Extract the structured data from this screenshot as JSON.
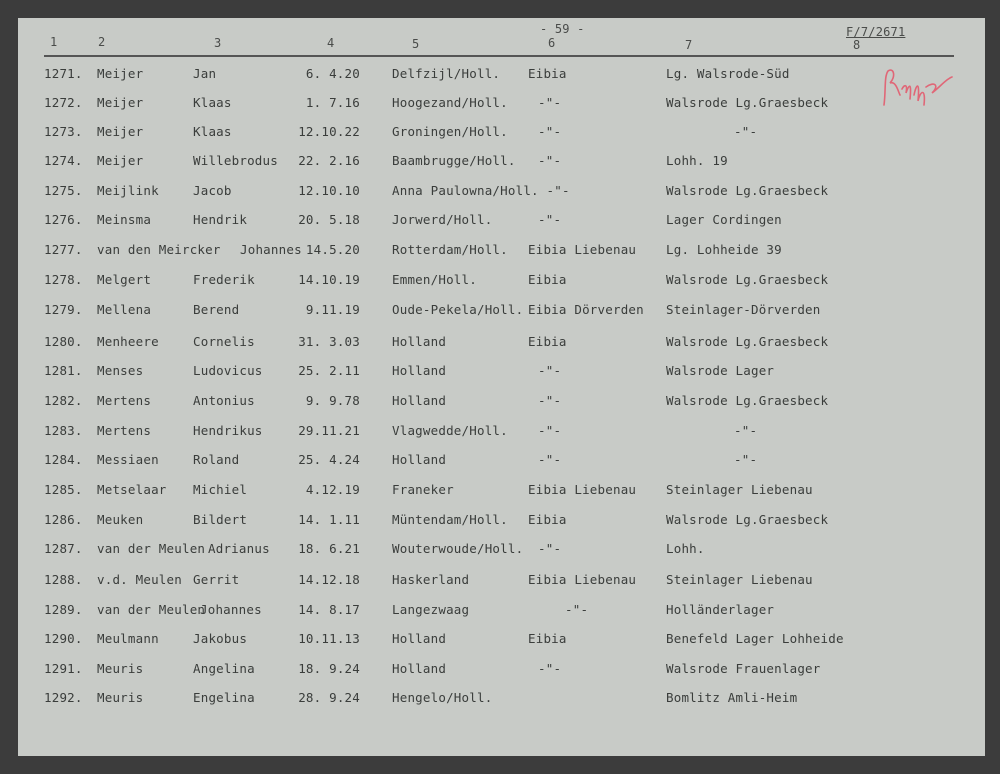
{
  "page_number": "- 59 -",
  "reference": "F/7/2671",
  "column_headers": [
    "1",
    "2",
    "3",
    "4",
    "5",
    "6",
    "7",
    "8"
  ],
  "signature_color": "#e06777",
  "rows": [
    {
      "no": "1271.",
      "surname": "Meijer",
      "first": "Jan",
      "date": "6. 4.20",
      "place": "Delfzijl/Holl.",
      "c6": "Eibia",
      "c7": "Lg. Walsrode-Süd"
    },
    {
      "no": "1272.",
      "surname": "Meijer",
      "first": "Klaas",
      "date": "1. 7.16",
      "place": "Hoogezand/Holl.",
      "c6": "-\"-",
      "c7": "Walsrode Lg.Graesbeck"
    },
    {
      "no": "1273.",
      "surname": "Meijer",
      "first": "Klaas",
      "date": "12.10.22",
      "place": "Groningen/Holl.",
      "c6": "-\"-",
      "c7": "-\"-"
    },
    {
      "no": "1274.",
      "surname": "Meijer",
      "first": "Willebrodus",
      "date": "22. 2.16",
      "place": "Baambrugge/Holl.",
      "c6": "-\"-",
      "c7": "Lohh. 19"
    },
    {
      "no": "1275.",
      "surname": "Meijlink",
      "first": "Jacob",
      "date": "12.10.10",
      "place": "Anna Paulowna/Holl. -\"-",
      "c6": "",
      "c7": "Walsrode Lg.Graesbeck"
    },
    {
      "no": "1276.",
      "surname": "Meinsma",
      "first": "Hendrik",
      "date": "20. 5.18",
      "place": "Jorwerd/Holl.",
      "c6": "-\"-",
      "c7": "Lager Cordingen"
    },
    {
      "no": "1277.",
      "surname": "van den Meircker",
      "first": "Johannes",
      "date": "14.5.20",
      "place": "Rotterdam/Holl.",
      "c6": "Eibia Liebenau",
      "c7": "Lg. Lohheide 39"
    },
    {
      "no": "1278.",
      "surname": "Melgert",
      "first": "Frederik",
      "date": "14.10.19",
      "place": "Emmen/Holl.",
      "c6": "Eibia",
      "c7": "Walsrode Lg.Graesbeck"
    },
    {
      "no": "1279.",
      "surname": "Mellena",
      "first": "Berend",
      "date": "9.11.19",
      "place": "Oude-Pekela/Holl.",
      "c6": "Eibia Dörverden",
      "c7": "Steinlager-Dörverden"
    },
    {
      "no": "1280.",
      "surname": "Menheere",
      "first": "Cornelis",
      "date": "31. 3.03",
      "place": "Holland",
      "c6": "Eibia",
      "c7": "Walsrode Lg.Graesbeck"
    },
    {
      "no": "1281.",
      "surname": "Menses",
      "first": "Ludovicus",
      "date": "25. 2.11",
      "place": "Holland",
      "c6": "-\"-",
      "c7": "Walsrode Lager"
    },
    {
      "no": "1282.",
      "surname": "Mertens",
      "first": "Antonius",
      "date": "9. 9.78",
      "place": "Holland",
      "c6": "-\"-",
      "c7": "Walsrode Lg.Graesbeck"
    },
    {
      "no": "1283.",
      "surname": "Mertens",
      "first": "Hendrikus",
      "date": "29.11.21",
      "place": "Vlagwedde/Holl.",
      "c6": "-\"-",
      "c7": "-\"-"
    },
    {
      "no": "1284.",
      "surname": "Messiaen",
      "first": "Roland",
      "date": "25. 4.24",
      "place": "Holland",
      "c6": "-\"-",
      "c7": "-\"-"
    },
    {
      "no": "1285.",
      "surname": "Metselaar",
      "first": "Michiel",
      "date": "4.12.19",
      "place": "Franeker",
      "c6": "Eibia Liebenau",
      "c7": "Steinlager Liebenau"
    },
    {
      "no": "1286.",
      "surname": "Meuken",
      "first": "Bildert",
      "date": "14. 1.11",
      "place": "Müntendam/Holl.",
      "c6": "Eibia",
      "c7": "Walsrode Lg.Graesbeck"
    },
    {
      "no": "1287.",
      "surname": "van der Meulen",
      "first": "Adrianus",
      "date": "18. 6.21",
      "place": "Wouterwoude/Holl.",
      "c6": "-\"-",
      "c7": "Lohh."
    },
    {
      "no": "1288.",
      "surname": "v.d. Meulen",
      "first": "Gerrit",
      "date": "14.12.18",
      "place": "Haskerland",
      "c6": "Eibia Liebenau",
      "c7": "Steinlager Liebenau"
    },
    {
      "no": "1289.",
      "surname": "van der Meulen",
      "first": "Johannes",
      "date": "14. 8.17",
      "place": "Langezwaag",
      "c6": "-\"-",
      "c7": "Holländerlager"
    },
    {
      "no": "1290.",
      "surname": "Meulmann",
      "first": "Jakobus",
      "date": "10.11.13",
      "place": "Holland",
      "c6": "Eibia",
      "c7": "Benefeld Lager Lohheide"
    },
    {
      "no": "1291.",
      "surname": "Meuris",
      "first": "Angelina",
      "date": "18. 9.24",
      "place": "Holland",
      "c6": "-\"-",
      "c7": "Walsrode Frauenlager"
    },
    {
      "no": "1292.",
      "surname": "Meuris",
      "first": "Engelina",
      "date": "28. 9.24",
      "place": "Hengelo/Holl.",
      "c6": "",
      "c7": "Bomlitz Amli-Heim"
    }
  ]
}
